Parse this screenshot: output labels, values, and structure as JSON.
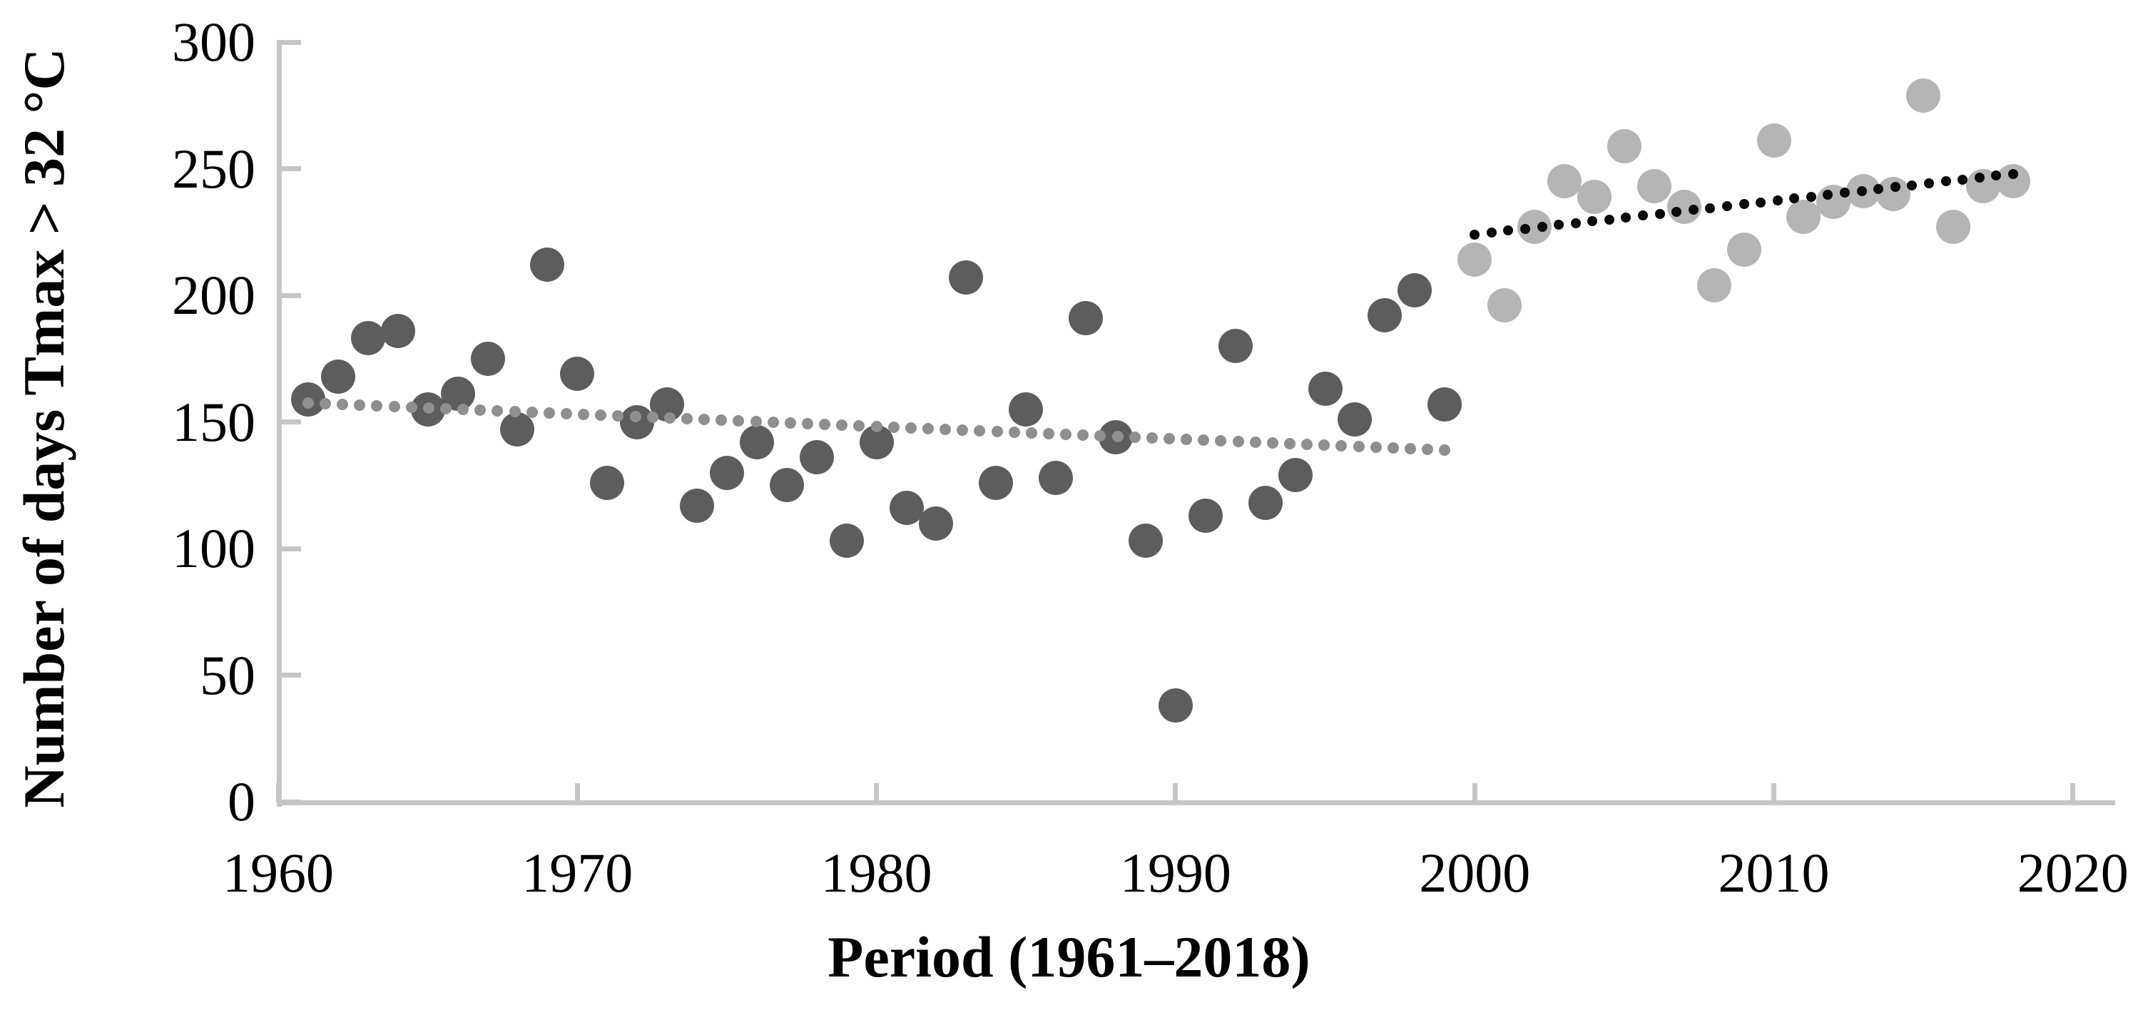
{
  "chart_data": {
    "type": "scatter",
    "xlabel": "Period (1961–2018)",
    "ylabel": "Number of days Tmax > 32 °C",
    "xlim": [
      1960,
      2020
    ],
    "ylim": [
      0,
      300
    ],
    "x_ticks": [
      1960,
      1970,
      1980,
      1990,
      2000,
      2010,
      2020
    ],
    "y_ticks": [
      0,
      50,
      100,
      150,
      200,
      250,
      300
    ],
    "grid": false,
    "legend": "none",
    "axis_color": "#c6c6c6",
    "text_color": "#000000",
    "series": [
      {
        "name": "annual-days-1961-1999",
        "color": "#5d5d5d",
        "marker_radius": 24,
        "x": [
          1961,
          1962,
          1963,
          1964,
          1965,
          1966,
          1967,
          1968,
          1969,
          1970,
          1971,
          1972,
          1973,
          1974,
          1975,
          1976,
          1977,
          1978,
          1979,
          1980,
          1981,
          1982,
          1983,
          1984,
          1985,
          1986,
          1987,
          1988,
          1989,
          1990,
          1991,
          1992,
          1993,
          1994,
          1995,
          1996,
          1997,
          1998,
          1999
        ],
        "values": [
          159,
          168,
          183,
          186,
          155,
          161,
          175,
          147,
          212,
          169,
          126,
          150,
          157,
          117,
          130,
          142,
          125,
          136,
          103,
          142,
          116,
          110,
          207,
          126,
          155,
          128,
          191,
          144,
          103,
          38,
          113,
          180,
          118,
          129,
          163,
          151,
          192,
          202,
          157
        ]
      },
      {
        "name": "annual-days-2000-2018",
        "color": "#b5b5b5",
        "marker_radius": 24,
        "x": [
          2000,
          2001,
          2002,
          2003,
          2004,
          2005,
          2006,
          2007,
          2008,
          2009,
          2010,
          2011,
          2012,
          2013,
          2014,
          2015,
          2016,
          2017,
          2018
        ],
        "values": [
          214,
          196,
          227,
          245,
          239,
          259,
          243,
          235,
          204,
          218,
          261,
          231,
          237,
          241,
          240,
          279,
          227,
          243,
          245
        ]
      }
    ],
    "trendlines": [
      {
        "name": "trend-1961-1999",
        "style": "dotted",
        "color": "#8f8f8f",
        "dot_radius": 8,
        "dot_spacing": 24,
        "x_start": 1961,
        "y_start": 157.5,
        "x_end": 1999,
        "y_end": 139
      },
      {
        "name": "trend-2000-2018",
        "style": "dotted",
        "color": "#0a0a0a",
        "dot_radius": 7,
        "dot_spacing": 24,
        "x_start": 2000,
        "y_start": 224,
        "x_end": 2018,
        "y_end": 248
      }
    ]
  }
}
